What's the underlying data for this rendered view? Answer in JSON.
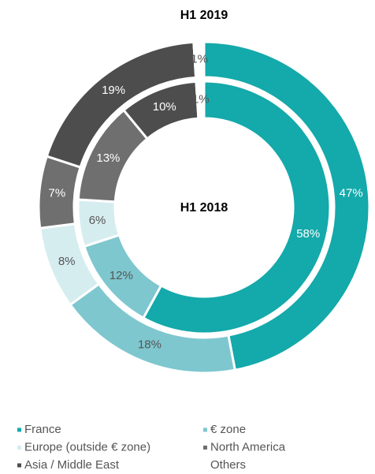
{
  "chart_data": {
    "type": "donut",
    "categories": [
      "France",
      "€ zone",
      "Europe (outside € zone)",
      "North America",
      "Asia / Middle East",
      "Others"
    ],
    "colors": [
      "#14a9aa",
      "#7ec7cf",
      "#d6edf0",
      "#6f6f6f",
      "#4d4d4d",
      "#ffffff"
    ],
    "series": [
      {
        "name": "H1 2019",
        "values": [
          47,
          18,
          8,
          7,
          19,
          1
        ],
        "value_labels": [
          "47%",
          "18%",
          "8%",
          "7%",
          "19%",
          "1%"
        ]
      },
      {
        "name": "H1 2018",
        "values": [
          58,
          12,
          6,
          13,
          10,
          1
        ],
        "value_labels": [
          "58%",
          "12%",
          "6%",
          "13%",
          "10%",
          "1%"
        ]
      }
    ]
  }
}
